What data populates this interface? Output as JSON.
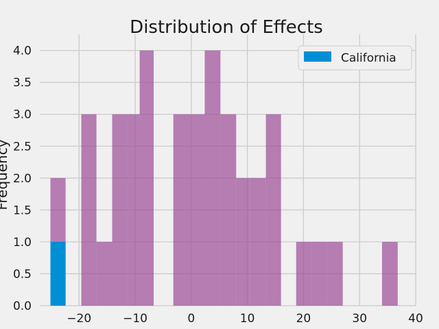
{
  "chart_data": {
    "type": "histogram",
    "title": "Distribution of Effects",
    "xlabel": "",
    "ylabel": "Frequency",
    "xlim": [
      -27,
      40
    ],
    "ylim": [
      0,
      4.2
    ],
    "xticks": [
      -20,
      -10,
      0,
      10,
      20,
      30,
      40
    ],
    "yticks": [
      0.0,
      0.5,
      1.0,
      1.5,
      2.0,
      2.5,
      3.0,
      3.5,
      4.0
    ],
    "xtick_labels": [
      "−20",
      "−10",
      "0",
      "10",
      "20",
      "30",
      "40"
    ],
    "ytick_labels": [
      "0.0",
      "0.5",
      "1.0",
      "1.5",
      "2.0",
      "2.5",
      "3.0",
      "3.5",
      "4.0"
    ],
    "grid": true,
    "legend_position": "top-right",
    "series": [
      {
        "name": "",
        "color": "#9b4b96",
        "bins": [
          {
            "x0": -25.1,
            "x1": -22.4,
            "value": 2
          },
          {
            "x0": -19.6,
            "x1": -16.9,
            "value": 3
          },
          {
            "x0": -16.9,
            "x1": -14.1,
            "value": 1
          },
          {
            "x0": -14.1,
            "x1": -11.4,
            "value": 3
          },
          {
            "x0": -11.4,
            "x1": -9.2,
            "value": 3
          },
          {
            "x0": -9.2,
            "x1": -6.7,
            "value": 4
          },
          {
            "x0": -3.2,
            "x1": 0.0,
            "value": 3
          },
          {
            "x0": 0.0,
            "x1": 2.4,
            "value": 3
          },
          {
            "x0": 2.4,
            "x1": 5.2,
            "value": 4
          },
          {
            "x0": 5.2,
            "x1": 8.0,
            "value": 3
          },
          {
            "x0": 8.0,
            "x1": 10.5,
            "value": 2
          },
          {
            "x0": 10.5,
            "x1": 13.3,
            "value": 2
          },
          {
            "x0": 13.3,
            "x1": 16.0,
            "value": 3
          },
          {
            "x0": 18.7,
            "x1": 21.5,
            "value": 1
          },
          {
            "x0": 21.5,
            "x1": 24.2,
            "value": 1
          },
          {
            "x0": 24.2,
            "x1": 27.0,
            "value": 1
          },
          {
            "x0": 34.0,
            "x1": 36.8,
            "value": 1
          }
        ]
      },
      {
        "name": "California",
        "color": "#008fd5",
        "bins": [
          {
            "x0": -25.1,
            "x1": -22.4,
            "value": 1
          }
        ]
      }
    ]
  }
}
